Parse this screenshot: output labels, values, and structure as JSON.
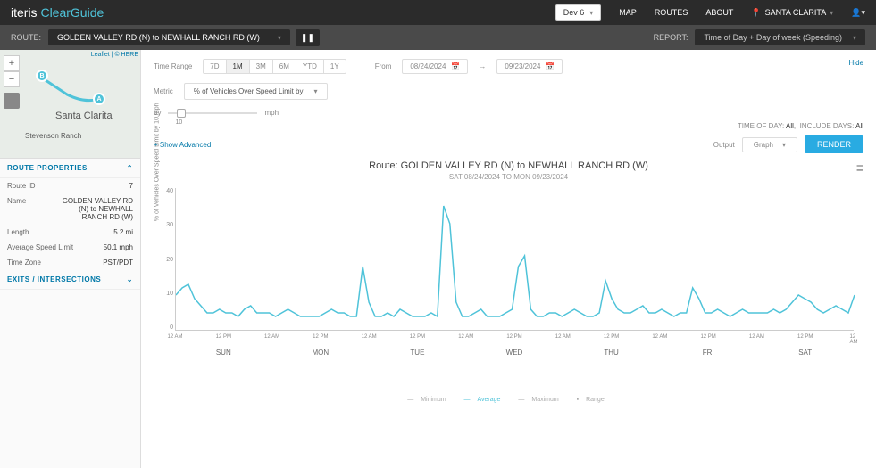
{
  "logo": {
    "iteris": "iteris",
    "clearguide": "ClearGuide"
  },
  "topnav": {
    "dev": "Dev 6",
    "map": "MAP",
    "routes": "ROUTES",
    "about": "ABOUT",
    "location": "SANTA CLARITA"
  },
  "subbar": {
    "route_label": "ROUTE:",
    "route_name": "GOLDEN VALLEY RD (N) to NEWHALL RANCH RD (W)",
    "report_label": "REPORT:",
    "report_name": "Time of Day + Day of week (Speeding)"
  },
  "map": {
    "attr": "Leaflet | © HERE",
    "city": "Santa Clarita",
    "area": "Stevenson Ranch",
    "marker_a": "A",
    "marker_b": "B"
  },
  "sidebar": {
    "sec_props": "ROUTE PROPERTIES",
    "sec_exits": "EXITS / INTERSECTIONS",
    "rows": [
      {
        "k": "Route ID",
        "v": "7"
      },
      {
        "k": "Name",
        "v": "GOLDEN VALLEY RD (N) to NEWHALL RANCH RD (W)"
      },
      {
        "k": "Length",
        "v": "5.2 mi"
      },
      {
        "k": "Average Speed Limit",
        "v": "50.1 mph"
      },
      {
        "k": "Time Zone",
        "v": "PST/PDT"
      }
    ]
  },
  "controls": {
    "time_range_label": "Time Range",
    "ranges": [
      "7D",
      "1M",
      "3M",
      "6M",
      "YTD",
      "1Y"
    ],
    "active_range": "1M",
    "from_label": "From",
    "date_from": "08/24/2024",
    "date_to": "09/23/2024",
    "metric_label": "Metric",
    "metric_value": "% of Vehicles Over Speed Limit by",
    "by_label": "by",
    "slider_val": "10",
    "mph": "mph",
    "hide": "Hide",
    "tod_label": "TIME OF DAY:",
    "tod_val": "All",
    "days_label": "INCLUDE DAYS:",
    "days_val": "All",
    "show_adv": "+ Show Advanced",
    "output_label": "Output",
    "output_val": "Graph",
    "render": "RENDER"
  },
  "chart": {
    "title": "Route: GOLDEN VALLEY RD (N) to NEWHALL RANCH RD (W)",
    "subtitle": "SAT 08/24/2024 TO MON 09/23/2024",
    "y_label": "% of Vehicles Over Speed Limit by 10 mph",
    "y_ticks": [
      "40",
      "30",
      "20",
      "10",
      "0"
    ],
    "ylim": [
      0,
      40
    ],
    "x_hours": [
      "12 AM",
      "12 PM",
      "12 AM",
      "12 PM",
      "12 AM",
      "12 PM",
      "12 AM",
      "12 PM",
      "12 AM",
      "12 PM",
      "12 AM",
      "12 PM",
      "12 AM",
      "12 PM",
      "12 AM"
    ],
    "x_days": [
      "SUN",
      "MON",
      "TUE",
      "WED",
      "THU",
      "FRI",
      "SAT"
    ],
    "line_color": "#4fc3d9",
    "background": "#ffffff",
    "series": [
      10,
      12,
      13,
      9,
      7,
      5,
      5,
      6,
      5,
      5,
      4,
      6,
      7,
      5,
      5,
      5,
      4,
      5,
      6,
      5,
      4,
      4,
      4,
      4,
      5,
      6,
      5,
      5,
      4,
      4,
      18,
      8,
      4,
      4,
      5,
      4,
      6,
      5,
      4,
      4,
      4,
      5,
      4,
      35,
      30,
      8,
      4,
      4,
      5,
      6,
      4,
      4,
      4,
      5,
      6,
      18,
      21,
      6,
      4,
      4,
      5,
      5,
      4,
      5,
      6,
      5,
      4,
      4,
      5,
      14,
      9,
      6,
      5,
      5,
      6,
      7,
      5,
      5,
      6,
      5,
      4,
      5,
      5,
      12,
      9,
      5,
      5,
      6,
      5,
      4,
      5,
      6,
      5,
      5,
      5,
      5,
      6,
      5,
      6,
      8,
      10,
      9,
      8,
      6,
      5,
      6,
      7,
      6,
      5,
      10
    ]
  },
  "legend": {
    "min": "Minimum",
    "avg": "Average",
    "max": "Maximum",
    "range": "Range"
  }
}
